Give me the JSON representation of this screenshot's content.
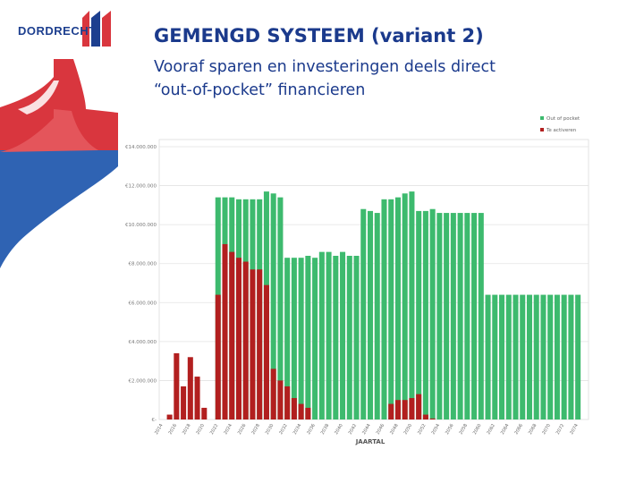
{
  "logo": {
    "text": "DORDRECHT"
  },
  "header": {
    "title": "GEMENGD SYSTEEM (variant 2)",
    "subtitle_line1": "Vooraf sparen en investeringen deels direct",
    "subtitle_line2": "“out-of-pocket” financieren"
  },
  "colors": {
    "brand_blue": "#1b3a8c",
    "brand_red": "#d9363e",
    "series_green": "#3dba6e",
    "series_red": "#b21f1f"
  },
  "chart_data": {
    "type": "bar",
    "stacked": false,
    "title": "",
    "xlabel": "JAARTAL",
    "ylabel": "",
    "ylim": [
      0,
      14000000
    ],
    "y_ticks": [
      0,
      2000000,
      4000000,
      6000000,
      8000000,
      10000000,
      12000000,
      14000000
    ],
    "y_tick_labels": [
      "€-",
      "€2.000.000",
      "€4.000.000",
      "€6.000.000",
      "€8.000.000",
      "€10.000.000",
      "€12.000.000",
      "€14.000.000"
    ],
    "x_tick_labels": [
      "2014",
      "2016",
      "2018",
      "2020",
      "2022",
      "2024",
      "2026",
      "2028",
      "2030",
      "2032",
      "2034",
      "2036",
      "2038",
      "2040",
      "2042",
      "2044",
      "2046",
      "2048",
      "2050",
      "2052",
      "2054",
      "2056",
      "2058",
      "2060",
      "2062",
      "2064",
      "2066",
      "2068",
      "2070",
      "2072",
      "2074"
    ],
    "grid": true,
    "legend_position": "top-right",
    "categories": [
      "2014",
      "2015",
      "2016",
      "2017",
      "2018",
      "2019",
      "2020",
      "2021",
      "2022",
      "2023",
      "2024",
      "2025",
      "2026",
      "2027",
      "2028",
      "2029",
      "2030",
      "2031",
      "2032",
      "2033",
      "2034",
      "2035",
      "2036",
      "2037",
      "2038",
      "2039",
      "2040",
      "2041",
      "2042",
      "2043",
      "2044",
      "2045",
      "2046",
      "2047",
      "2048",
      "2049",
      "2050",
      "2051",
      "2052",
      "2053",
      "2054",
      "2055",
      "2056",
      "2057",
      "2058",
      "2059",
      "2060",
      "2061",
      "2062",
      "2063",
      "2064",
      "2065",
      "2066",
      "2067",
      "2068",
      "2069",
      "2070",
      "2071",
      "2072",
      "2073",
      "2074"
    ],
    "series": [
      {
        "name": "Out of pocket",
        "color": "#3dba6e",
        "values": [
          0,
          0,
          0,
          0,
          0,
          0,
          0,
          0,
          11400000,
          11400000,
          11400000,
          11300000,
          11300000,
          11300000,
          11300000,
          11700000,
          11600000,
          11400000,
          8300000,
          8300000,
          8300000,
          8400000,
          8300000,
          8600000,
          8600000,
          8400000,
          8600000,
          8400000,
          8400000,
          10800000,
          10700000,
          10600000,
          11300000,
          11300000,
          11400000,
          11600000,
          11700000,
          10700000,
          10700000,
          10800000,
          10600000,
          10600000,
          10600000,
          10600000,
          10600000,
          10600000,
          10600000,
          6400000,
          6400000,
          6400000,
          6400000,
          6400000,
          6400000,
          6400000,
          6400000,
          6400000,
          6400000,
          6400000,
          6400000,
          6400000,
          6400000
        ]
      },
      {
        "name": "Te activeren",
        "color": "#b21f1f",
        "values": [
          0,
          250000,
          3400000,
          1700000,
          3200000,
          2200000,
          600000,
          0,
          6400000,
          9000000,
          8600000,
          8300000,
          8100000,
          7700000,
          7700000,
          6900000,
          2600000,
          2000000,
          1700000,
          1100000,
          800000,
          600000,
          0,
          0,
          0,
          0,
          0,
          0,
          0,
          0,
          0,
          0,
          0,
          800000,
          1000000,
          1000000,
          1100000,
          1300000,
          250000,
          50000,
          0,
          0,
          0,
          0,
          0,
          0,
          0,
          0,
          0,
          0,
          0,
          0,
          0,
          0,
          0,
          0,
          0,
          0,
          0,
          0,
          0
        ]
      }
    ]
  }
}
